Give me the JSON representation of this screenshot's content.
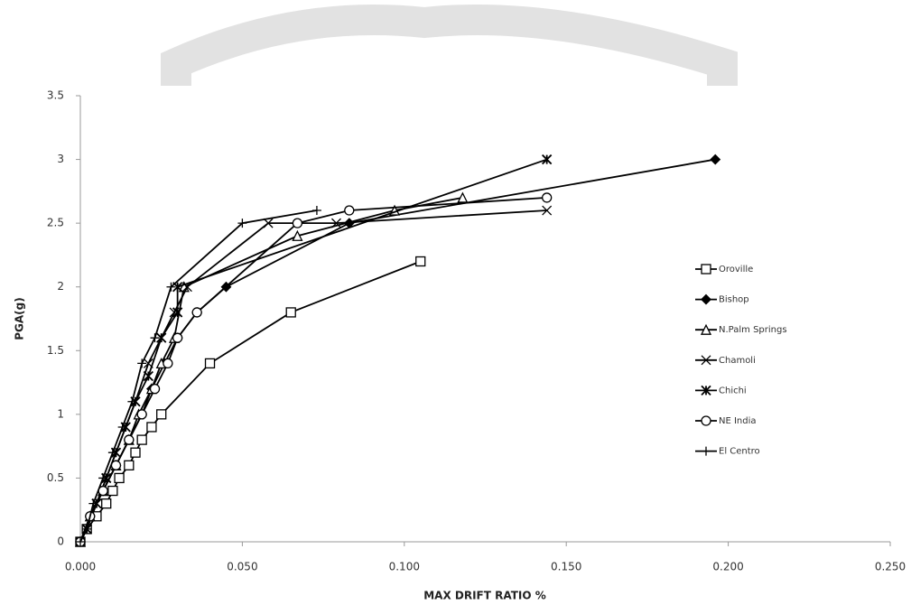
{
  "chart_data": {
    "type": "line",
    "xlabel": "MAX DRIFT RATIO %",
    "ylabel": "PGA(g)",
    "xlim": [
      0,
      0.25
    ],
    "ylim": [
      0,
      3.5
    ],
    "xticks": [
      {
        "value": 0,
        "label": "0.000"
      },
      {
        "value": 0.05,
        "label": "0.050"
      },
      {
        "value": 0.1,
        "label": "0.100"
      },
      {
        "value": 0.15,
        "label": "0.150"
      },
      {
        "value": 0.2,
        "label": "0.200"
      },
      {
        "value": 0.25,
        "label": "0.250"
      }
    ],
    "yticks": [
      0,
      0.5,
      1,
      1.5,
      2,
      2.5,
      3,
      3.5
    ],
    "grid": false,
    "legend": "right",
    "series": [
      {
        "name": "Oroville",
        "color": "#000000",
        "marker": "square",
        "x": [
          0,
          0.002,
          0.005,
          0.008,
          0.01,
          0.012,
          0.015,
          0.017,
          0.019,
          0.022,
          0.025,
          0.04,
          0.065,
          0.105
        ],
        "values": [
          0,
          0.1,
          0.2,
          0.3,
          0.4,
          0.5,
          0.6,
          0.7,
          0.8,
          0.9,
          1.0,
          1.4,
          1.8,
          2.2
        ]
      },
      {
        "name": "Bishop",
        "color": "#000000",
        "marker": "diamond",
        "x": [
          0,
          0.003,
          0.007,
          0.011,
          0.015,
          0.019,
          0.022,
          0.026,
          0.03,
          0.036,
          0.045,
          0.083,
          0.196
        ],
        "values": [
          0,
          0.2,
          0.4,
          0.6,
          0.8,
          1.0,
          1.2,
          1.4,
          1.6,
          1.8,
          2.0,
          2.5,
          3.0
        ]
      },
      {
        "name": "N.Palm Springs",
        "color": "#000000",
        "marker": "triangle",
        "x": [
          0,
          0.003,
          0.007,
          0.011,
          0.015,
          0.018,
          0.022,
          0.025,
          0.029,
          0.032,
          0.067,
          0.097,
          0.118
        ],
        "values": [
          0,
          0.2,
          0.4,
          0.6,
          0.8,
          1.0,
          1.2,
          1.4,
          1.6,
          2.0,
          2.4,
          2.6,
          2.7
        ]
      },
      {
        "name": "Chamoli",
        "color": "#000000",
        "marker": "x",
        "x": [
          0,
          0.002,
          0.005,
          0.008,
          0.011,
          0.014,
          0.017,
          0.021,
          0.025,
          0.029,
          0.033,
          0.058,
          0.079,
          0.144
        ],
        "values": [
          0,
          0.1,
          0.3,
          0.5,
          0.7,
          0.9,
          1.1,
          1.4,
          1.6,
          1.8,
          2.0,
          2.5,
          2.5,
          2.6
        ]
      },
      {
        "name": "Chichi",
        "color": "#000000",
        "marker": "star",
        "x": [
          0,
          0.002,
          0.005,
          0.008,
          0.011,
          0.014,
          0.017,
          0.021,
          0.025,
          0.03,
          0.03,
          0.144
        ],
        "values": [
          0,
          0.1,
          0.3,
          0.5,
          0.7,
          0.9,
          1.1,
          1.3,
          1.6,
          1.8,
          2.0,
          3.0
        ]
      },
      {
        "name": "NE India",
        "color": "#000000",
        "marker": "circle",
        "x": [
          0,
          0.003,
          0.007,
          0.011,
          0.015,
          0.019,
          0.023,
          0.027,
          0.03,
          0.036,
          0.067,
          0.083,
          0.144
        ],
        "values": [
          0,
          0.2,
          0.4,
          0.6,
          0.8,
          1.0,
          1.2,
          1.4,
          1.6,
          1.8,
          2.5,
          2.6,
          2.7
        ]
      },
      {
        "name": "El Centro",
        "color": "#000000",
        "marker": "plus",
        "x": [
          0,
          0.002,
          0.004,
          0.007,
          0.01,
          0.013,
          0.016,
          0.019,
          0.023,
          0.028,
          0.05,
          0.073
        ],
        "values": [
          0,
          0.1,
          0.3,
          0.5,
          0.7,
          0.9,
          1.1,
          1.4,
          1.6,
          2.0,
          2.5,
          2.6
        ]
      }
    ]
  }
}
